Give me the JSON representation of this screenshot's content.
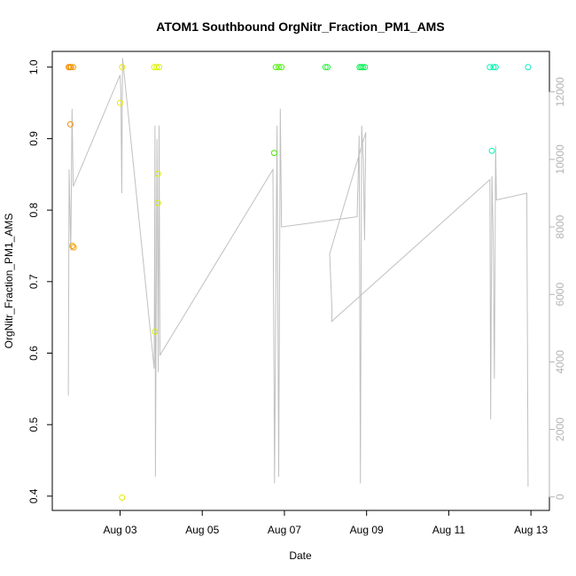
{
  "chart_data": {
    "type": "scatter",
    "title": "ATOM1 Southbound OrgNitr_Fraction_PM1_AMS",
    "xlabel": "Date",
    "ylabel": "OrgNitr_Fraction_PM1_AMS",
    "x_ticks": [
      "Aug 03",
      "Aug 05",
      "Aug 07",
      "Aug 09",
      "Aug 11",
      "Aug 13"
    ],
    "y_ticks": [
      "0.4",
      "0.5",
      "0.6",
      "0.7",
      "0.8",
      "0.9",
      "1.0"
    ],
    "y2_ticks": [
      "0",
      "2000",
      "4000",
      "6000",
      "8000",
      "10000",
      "12000"
    ],
    "xlim": [
      1.35,
      13.45
    ],
    "ylim": [
      0.38,
      1.022
    ],
    "y2lim": [
      -400,
      13200
    ],
    "points": [
      {
        "x": 1.75,
        "y": 1.0,
        "color": "#f28a00"
      },
      {
        "x": 1.78,
        "y": 1.0,
        "color": "#f28a00"
      },
      {
        "x": 1.81,
        "y": 1.0,
        "color": "#f28a00"
      },
      {
        "x": 1.86,
        "y": 1.0,
        "color": "#f2a000"
      },
      {
        "x": 1.79,
        "y": 0.92,
        "color": "#f28a00"
      },
      {
        "x": 1.84,
        "y": 0.75,
        "color": "#f2a000"
      },
      {
        "x": 1.87,
        "y": 0.748,
        "color": "#f2a000"
      },
      {
        "x": 3.0,
        "y": 0.95,
        "color": "#e8e800"
      },
      {
        "x": 3.05,
        "y": 1.0,
        "color": "#e8e800"
      },
      {
        "x": 3.05,
        "y": 0.398,
        "color": "#e8e800"
      },
      {
        "x": 3.83,
        "y": 1.0,
        "color": "#d8f000"
      },
      {
        "x": 3.89,
        "y": 1.0,
        "color": "#d8f000"
      },
      {
        "x": 3.95,
        "y": 1.0,
        "color": "#d8f000"
      },
      {
        "x": 3.92,
        "y": 0.851,
        "color": "#d8f000"
      },
      {
        "x": 3.92,
        "y": 0.81,
        "color": "#d8f000"
      },
      {
        "x": 3.85,
        "y": 0.63,
        "color": "#d8f000"
      },
      {
        "x": 6.75,
        "y": 0.88,
        "color": "#44f000"
      },
      {
        "x": 6.79,
        "y": 1.0,
        "color": "#44f000"
      },
      {
        "x": 6.86,
        "y": 1.0,
        "color": "#44f000"
      },
      {
        "x": 6.93,
        "y": 1.0,
        "color": "#44f000"
      },
      {
        "x": 8.0,
        "y": 1.0,
        "color": "#22f040"
      },
      {
        "x": 8.05,
        "y": 1.0,
        "color": "#22f040"
      },
      {
        "x": 8.83,
        "y": 1.0,
        "color": "#00f050"
      },
      {
        "x": 8.87,
        "y": 1.0,
        "color": "#00f050"
      },
      {
        "x": 8.91,
        "y": 1.0,
        "color": "#00f050"
      },
      {
        "x": 8.96,
        "y": 1.0,
        "color": "#00f050"
      },
      {
        "x": 12.0,
        "y": 1.0,
        "color": "#00f0b0"
      },
      {
        "x": 12.05,
        "y": 0.883,
        "color": "#00f0b0"
      },
      {
        "x": 12.09,
        "y": 1.0,
        "color": "#00f0b0"
      },
      {
        "x": 12.14,
        "y": 1.0,
        "color": "#00f0b0"
      },
      {
        "x": 12.93,
        "y": 1.0,
        "color": "#00f0c8"
      }
    ],
    "line_series": [
      [
        1.74,
        3000
      ],
      [
        1.76,
        9700
      ],
      [
        1.78,
        8500
      ],
      [
        1.8,
        7300
      ],
      [
        1.83,
        11500
      ],
      [
        1.86,
        9200
      ],
      [
        3.0,
        12500
      ],
      [
        3.02,
        12000
      ],
      [
        3.04,
        9000
      ],
      [
        3.06,
        13000
      ],
      [
        3.83,
        3800
      ],
      [
        3.85,
        11000
      ],
      [
        3.86,
        600
      ],
      [
        3.9,
        10600
      ],
      [
        3.93,
        3700
      ],
      [
        3.95,
        11000
      ],
      [
        3.97,
        4200
      ],
      [
        6.72,
        9700
      ],
      [
        6.76,
        400
      ],
      [
        6.82,
        11000
      ],
      [
        6.86,
        600
      ],
      [
        6.9,
        11500
      ],
      [
        6.93,
        8000
      ],
      [
        8.77,
        8300
      ],
      [
        8.82,
        10700
      ],
      [
        8.85,
        400
      ],
      [
        8.88,
        11000
      ],
      [
        8.92,
        10000
      ],
      [
        8.95,
        7600
      ],
      [
        8.98,
        10800
      ],
      [
        8.1,
        7200
      ],
      [
        8.16,
        5500
      ],
      [
        8.15,
        5200
      ],
      [
        12.0,
        9400
      ],
      [
        12.02,
        2300
      ],
      [
        12.05,
        9500
      ],
      [
        12.08,
        7800
      ],
      [
        12.11,
        3500
      ],
      [
        12.14,
        10400
      ],
      [
        12.16,
        8800
      ],
      [
        12.9,
        9000
      ],
      [
        12.93,
        300
      ]
    ]
  }
}
